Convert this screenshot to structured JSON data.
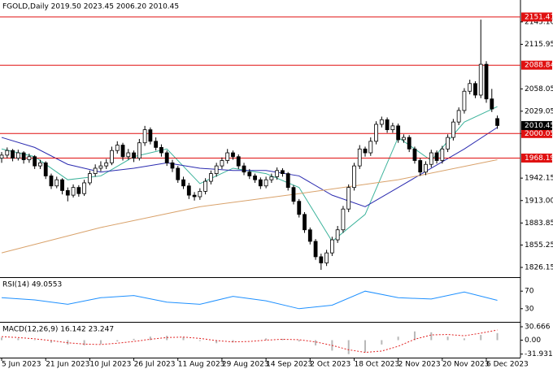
{
  "chart_data": [
    {
      "type": "candlestick",
      "title": "FGOLD,Daily  2019.50 2023.45 2006.20 2010.45",
      "candles": [
        [
          1968,
          1976,
          1962,
          1972
        ],
        [
          1972,
          1982,
          1968,
          1978
        ],
        [
          1978,
          1980,
          1964,
          1968
        ],
        [
          1968,
          1979,
          1965,
          1975
        ],
        [
          1975,
          1977,
          1961,
          1966
        ],
        [
          1966,
          1974,
          1962,
          1970
        ],
        [
          1970,
          1972,
          1954,
          1958
        ],
        [
          1958,
          1966,
          1954,
          1962
        ],
        [
          1962,
          1964,
          1941,
          1945
        ],
        [
          1945,
          1948,
          1928,
          1932
        ],
        [
          1932,
          1944,
          1929,
          1940
        ],
        [
          1940,
          1942,
          1921,
          1926
        ],
        [
          1926,
          1930,
          1912,
          1920
        ],
        [
          1920,
          1934,
          1917,
          1930
        ],
        [
          1930,
          1933,
          1918,
          1922
        ],
        [
          1922,
          1940,
          1919,
          1936
        ],
        [
          1936,
          1952,
          1933,
          1948
        ],
        [
          1948,
          1960,
          1944,
          1955
        ],
        [
          1955,
          1964,
          1951,
          1958
        ],
        [
          1958,
          1967,
          1954,
          1962
        ],
        [
          1962,
          1983,
          1959,
          1978
        ],
        [
          1978,
          1990,
          1974,
          1985
        ],
        [
          1985,
          1988,
          1965,
          1970
        ],
        [
          1970,
          1980,
          1966,
          1975
        ],
        [
          1975,
          1978,
          1963,
          1968
        ],
        [
          1968,
          1993,
          1965,
          1988
        ],
        [
          1988,
          2010,
          1984,
          2005
        ],
        [
          2005,
          2008,
          1986,
          1990
        ],
        [
          1990,
          1995,
          1978,
          1982
        ],
        [
          1982,
          1986,
          1970,
          1975
        ],
        [
          1975,
          1978,
          1958,
          1962
        ],
        [
          1962,
          1966,
          1950,
          1955
        ],
        [
          1955,
          1958,
          1936,
          1940
        ],
        [
          1940,
          1944,
          1928,
          1932
        ],
        [
          1932,
          1936,
          1915,
          1920
        ],
        [
          1920,
          1924,
          1913,
          1918
        ],
        [
          1918,
          1929,
          1914,
          1925
        ],
        [
          1925,
          1942,
          1921,
          1938
        ],
        [
          1938,
          1952,
          1934,
          1948
        ],
        [
          1948,
          1962,
          1944,
          1958
        ],
        [
          1958,
          1969,
          1954,
          1965
        ],
        [
          1965,
          1980,
          1961,
          1975
        ],
        [
          1975,
          1978,
          1966,
          1970
        ],
        [
          1970,
          1973,
          1954,
          1958
        ],
        [
          1958,
          1962,
          1946,
          1950
        ],
        [
          1950,
          1954,
          1941,
          1945
        ],
        [
          1945,
          1948,
          1936,
          1940
        ],
        [
          1940,
          1943,
          1928,
          1932
        ],
        [
          1932,
          1944,
          1929,
          1940
        ],
        [
          1940,
          1948,
          1936,
          1944
        ],
        [
          1944,
          1956,
          1940,
          1952
        ],
        [
          1952,
          1955,
          1944,
          1948
        ],
        [
          1948,
          1950,
          1926,
          1930
        ],
        [
          1930,
          1933,
          1908,
          1912
        ],
        [
          1912,
          1915,
          1891,
          1895
        ],
        [
          1895,
          1898,
          1871,
          1875
        ],
        [
          1875,
          1878,
          1856,
          1860
        ],
        [
          1860,
          1863,
          1836,
          1840
        ],
        [
          1840,
          1844,
          1823,
          1832
        ],
        [
          1832,
          1849,
          1828,
          1845
        ],
        [
          1845,
          1866,
          1841,
          1862
        ],
        [
          1862,
          1880,
          1858,
          1875
        ],
        [
          1875,
          1906,
          1871,
          1902
        ],
        [
          1902,
          1934,
          1898,
          1930
        ],
        [
          1930,
          1962,
          1926,
          1958
        ],
        [
          1958,
          1985,
          1954,
          1980
        ],
        [
          1980,
          1983,
          1970,
          1975
        ],
        [
          1975,
          1995,
          1971,
          1990
        ],
        [
          1990,
          2016,
          1986,
          2012
        ],
        [
          2012,
          2022,
          2008,
          2018
        ],
        [
          2018,
          2021,
          2001,
          2005
        ],
        [
          2005,
          2014,
          2001,
          2010
        ],
        [
          2010,
          2013,
          1988,
          1992
        ],
        [
          1992,
          1999,
          1988,
          1995
        ],
        [
          1995,
          1998,
          1976,
          1980
        ],
        [
          1980,
          1983,
          1961,
          1965
        ],
        [
          1965,
          1968,
          1945,
          1950
        ],
        [
          1950,
          1964,
          1946,
          1960
        ],
        [
          1960,
          1979,
          1956,
          1975
        ],
        [
          1975,
          1978,
          1961,
          1965
        ],
        [
          1965,
          1984,
          1961,
          1980
        ],
        [
          1980,
          1999,
          1976,
          1995
        ],
        [
          1995,
          2019,
          1991,
          2015
        ],
        [
          2015,
          2034,
          2011,
          2030
        ],
        [
          2030,
          2059,
          2026,
          2055
        ],
        [
          2055,
          2070,
          2051,
          2065
        ],
        [
          2065,
          2068,
          2046,
          2050
        ],
        [
          2050,
          2148,
          2046,
          2090
        ],
        [
          2090,
          2094,
          2040,
          2045
        ],
        [
          2045,
          2058,
          2028,
          2032
        ],
        [
          2019.5,
          2023.45,
          2006.2,
          2010.45
        ]
      ],
      "xlim": [
        -0.3,
        94.2
      ],
      "xticks": [
        {
          "value": 0,
          "label": "5 Jun 2023"
        },
        {
          "value": 8,
          "label": "21 Jun 2023"
        },
        {
          "value": 16,
          "label": "10 Jul 2023"
        },
        {
          "value": 24,
          "label": "26 Jul 2023"
        },
        {
          "value": 32,
          "label": "11 Aug 2023"
        },
        {
          "value": 40,
          "label": "29 Aug 2023"
        },
        {
          "value": 48,
          "label": "14 Sep 2023"
        },
        {
          "value": 56,
          "label": "2 Oct 2023"
        },
        {
          "value": 64,
          "label": "18 Oct 2023"
        },
        {
          "value": 72,
          "label": "2 Nov 2023"
        },
        {
          "value": 80,
          "label": "20 Nov 2023"
        },
        {
          "value": 88,
          "label": "6 Dec 2023"
        }
      ],
      "ylim": [
        1813.5,
        2173.5
      ],
      "yticks": [
        {
          "value": 2145.1,
          "label": "2145.10"
        },
        2115.95,
        2058.05,
        2029.05,
        2000.05,
        1942.15,
        {
          "value": 1913,
          "label": "1913.00"
        },
        1883.85,
        1855.25,
        1826.15
      ],
      "levels": [
        2151.41,
        2088.84,
        2000.05,
        1968.19
      ],
      "level_color": "#e01010",
      "overlays": [
        {
          "color": "#3cb39b",
          "x": [
            0,
            6,
            12,
            18,
            24,
            30,
            36,
            42,
            48,
            54,
            60,
            66,
            72,
            78,
            84,
            90
          ],
          "values": [
            1980,
            1970,
            1940,
            1945,
            1970,
            1980,
            1935,
            1955,
            1948,
            1930,
            1860,
            1895,
            1995,
            1965,
            2015,
            2035
          ]
        },
        {
          "color": "#2b2bb0",
          "x": [
            0,
            6,
            12,
            18,
            24,
            30,
            36,
            42,
            48,
            54,
            60,
            66,
            72,
            78,
            84,
            90
          ],
          "values": [
            1995,
            1982,
            1960,
            1950,
            1955,
            1962,
            1955,
            1952,
            1952,
            1945,
            1920,
            1905,
            1930,
            1955,
            1980,
            2008
          ]
        },
        {
          "color": "#d9a26b",
          "x": [
            0,
            18,
            36,
            54,
            72,
            90
          ],
          "values": [
            1845,
            1878,
            1905,
            1922,
            1940,
            1966
          ]
        }
      ]
    },
    {
      "type": "line",
      "title": "RSI(14) 49.0553",
      "color": "#1e90ff",
      "xlim": [
        -0.3,
        94.2
      ],
      "x": [
        0,
        6,
        12,
        18,
        24,
        30,
        36,
        42,
        48,
        54,
        60,
        66,
        72,
        78,
        84,
        90
      ],
      "values": [
        55,
        50,
        40,
        55,
        60,
        45,
        40,
        58,
        48,
        30,
        38,
        70,
        55,
        52,
        68,
        49.0553
      ],
      "ylim": [
        0,
        100
      ],
      "yticks": [
        70,
        30
      ]
    },
    {
      "type": "macd",
      "title": "MACD(12,26,9) 16.142 23.247",
      "xlim": [
        -0.3,
        94.2
      ],
      "x": [
        0,
        3,
        6,
        9,
        12,
        15,
        18,
        21,
        24,
        27,
        30,
        33,
        36,
        39,
        42,
        45,
        48,
        51,
        54,
        57,
        60,
        63,
        66,
        69,
        72,
        75,
        78,
        81,
        84,
        87,
        90
      ],
      "histogram": [
        6,
        4,
        -1,
        -6,
        -10,
        -12,
        -9,
        -3,
        3,
        8,
        10,
        7,
        -2,
        -7,
        -5,
        0,
        4,
        3,
        -3,
        -12,
        -24,
        -32,
        -28,
        -10,
        8,
        20,
        18,
        8,
        4,
        12,
        16.142
      ],
      "signal": [
        8,
        6,
        3,
        -1,
        -6,
        -9,
        -10,
        -7,
        -3,
        2,
        6,
        7,
        4,
        -1,
        -4,
        -3,
        0,
        2,
        1,
        -4,
        -12,
        -22,
        -28,
        -25,
        -14,
        2,
        12,
        13,
        10,
        16,
        23.247
      ],
      "histogram_color": "#b8b8b8",
      "signal_color": "#e02020",
      "ylim": [
        -40,
        40
      ],
      "yticks": [
        30.666,
        {
          "value": 0,
          "label": "0.00"
        },
        -31.931
      ]
    }
  ]
}
